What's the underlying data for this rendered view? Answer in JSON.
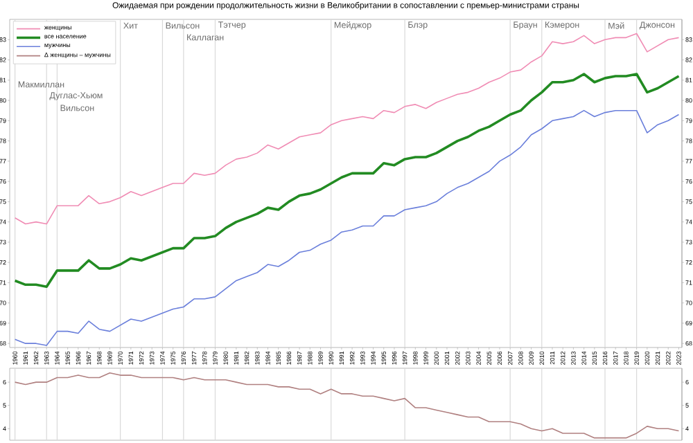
{
  "chart_data": [
    {
      "type": "line",
      "title": "Ожидаемая при рождении продолжительность жизни в Великобритании в сопоставлении с премьер-министрами страны",
      "x": [
        1960,
        1961,
        1962,
        1963,
        1964,
        1965,
        1966,
        1967,
        1968,
        1969,
        1970,
        1971,
        1972,
        1973,
        1974,
        1975,
        1976,
        1977,
        1978,
        1979,
        1980,
        1981,
        1982,
        1983,
        1984,
        1985,
        1986,
        1987,
        1988,
        1989,
        1990,
        1991,
        1992,
        1993,
        1994,
        1995,
        1996,
        1997,
        1998,
        1999,
        2000,
        2001,
        2002,
        2003,
        2004,
        2005,
        2006,
        2007,
        2008,
        2009,
        2010,
        2011,
        2012,
        2013,
        2014,
        2015,
        2016,
        2017,
        2018,
        2019,
        2020,
        2021,
        2022,
        2023
      ],
      "series": [
        {
          "name": "женщины",
          "color": "#f08cb4",
          "values": [
            74.2,
            73.9,
            74.0,
            73.9,
            74.8,
            74.8,
            74.8,
            75.3,
            74.9,
            75.0,
            75.2,
            75.5,
            75.3,
            75.5,
            75.7,
            75.9,
            75.9,
            76.4,
            76.3,
            76.4,
            76.8,
            77.1,
            77.2,
            77.4,
            77.8,
            77.6,
            77.9,
            78.2,
            78.3,
            78.4,
            78.8,
            79.0,
            79.1,
            79.2,
            79.1,
            79.5,
            79.4,
            79.7,
            79.8,
            79.6,
            79.9,
            80.1,
            80.3,
            80.4,
            80.6,
            80.9,
            81.1,
            81.4,
            81.5,
            81.9,
            82.2,
            82.9,
            82.8,
            82.9,
            83.2,
            82.8,
            83.0,
            83.1,
            83.1,
            83.3,
            82.4,
            82.7,
            83.0,
            83.1
          ]
        },
        {
          "name": "все население",
          "color": "#228b22",
          "values": [
            71.1,
            70.9,
            70.9,
            70.8,
            71.6,
            71.6,
            71.6,
            72.1,
            71.7,
            71.7,
            71.9,
            72.2,
            72.1,
            72.3,
            72.5,
            72.7,
            72.7,
            73.2,
            73.2,
            73.3,
            73.7,
            74.0,
            74.2,
            74.4,
            74.7,
            74.6,
            75.0,
            75.3,
            75.4,
            75.6,
            75.9,
            76.2,
            76.4,
            76.4,
            76.4,
            76.9,
            76.8,
            77.1,
            77.2,
            77.2,
            77.4,
            77.7,
            78.0,
            78.2,
            78.5,
            78.7,
            79.0,
            79.3,
            79.5,
            80.0,
            80.4,
            80.9,
            80.9,
            81.0,
            81.3,
            80.9,
            81.1,
            81.2,
            81.2,
            81.3,
            80.4,
            80.6,
            80.9,
            81.2
          ]
        },
        {
          "name": "мужчины",
          "color": "#6a7fdb",
          "values": [
            68.2,
            68.0,
            68.0,
            67.9,
            68.6,
            68.6,
            68.5,
            69.1,
            68.7,
            68.6,
            68.9,
            69.2,
            69.1,
            69.3,
            69.5,
            69.7,
            69.8,
            70.2,
            70.2,
            70.3,
            70.7,
            71.1,
            71.3,
            71.5,
            71.9,
            71.8,
            72.1,
            72.5,
            72.6,
            72.9,
            73.1,
            73.5,
            73.6,
            73.8,
            73.8,
            74.3,
            74.3,
            74.6,
            74.7,
            74.8,
            75.0,
            75.4,
            75.7,
            75.9,
            76.2,
            76.5,
            77.0,
            77.3,
            77.7,
            78.3,
            78.6,
            79.0,
            79.1,
            79.2,
            79.5,
            79.2,
            79.4,
            79.5,
            79.5,
            79.5,
            78.4,
            78.8,
            79.0,
            79.3
          ]
        }
      ],
      "xlim": [
        1959.5,
        2023.3
      ],
      "xticks": [
        1960,
        1961,
        1962,
        1963,
        1964,
        1965,
        1966,
        1967,
        1968,
        1969,
        1970,
        1971,
        1972,
        1973,
        1974,
        1975,
        1976,
        1977,
        1978,
        1979,
        1980,
        1981,
        1982,
        1983,
        1984,
        1985,
        1986,
        1987,
        1988,
        1989,
        1990,
        1991,
        1992,
        1993,
        1994,
        1995,
        1996,
        1997,
        1998,
        1999,
        2000,
        2001,
        2002,
        2003,
        2004,
        2005,
        2006,
        2007,
        2008,
        2009,
        2010,
        2011,
        2012,
        2013,
        2014,
        2015,
        2016,
        2017,
        2018,
        2019,
        2020,
        2021,
        2022,
        2023
      ],
      "ylim": [
        67.8,
        84.0
      ],
      "yticks": [
        68,
        69,
        70,
        71,
        72,
        73,
        74,
        75,
        76,
        77,
        78,
        79,
        80,
        81,
        82,
        83
      ],
      "y2lim": [
        67.8,
        84.0
      ],
      "y2ticks": [
        68,
        69,
        70,
        71,
        72,
        73,
        74,
        75,
        76,
        77,
        78,
        79,
        80,
        81,
        82,
        83
      ],
      "legend": "top left",
      "ref_lines": [
        {
          "axis": "x",
          "value": 1960,
          "label": "Макмиллан"
        },
        {
          "axis": "x",
          "value": 1963,
          "label": "Дуглас-Хьюм"
        },
        {
          "axis": "x",
          "value": 1964,
          "label": "Вильсон"
        },
        {
          "axis": "x",
          "value": 1970,
          "label": "Хит"
        },
        {
          "axis": "x",
          "value": 1974,
          "label": "Вильсон"
        },
        {
          "axis": "x",
          "value": 1976,
          "label": "Каллаган"
        },
        {
          "axis": "x",
          "value": 1979,
          "label": "Тэтчер"
        },
        {
          "axis": "x",
          "value": 1990,
          "label": "Мейджор"
        },
        {
          "axis": "x",
          "value": 1997,
          "label": "Блэр"
        },
        {
          "axis": "x",
          "value": 2007,
          "label": "Браун"
        },
        {
          "axis": "x",
          "value": 2010,
          "label": "Кэмерон"
        },
        {
          "axis": "x",
          "value": 2016,
          "label": "Мэй"
        },
        {
          "axis": "x",
          "value": 2019,
          "label": "Джонсон"
        }
      ]
    },
    {
      "type": "line",
      "x": [
        1960,
        1961,
        1962,
        1963,
        1964,
        1965,
        1966,
        1967,
        1968,
        1969,
        1970,
        1971,
        1972,
        1973,
        1974,
        1975,
        1976,
        1977,
        1978,
        1979,
        1980,
        1981,
        1982,
        1983,
        1984,
        1985,
        1986,
        1987,
        1988,
        1989,
        1990,
        1991,
        1992,
        1993,
        1994,
        1995,
        1996,
        1997,
        1998,
        1999,
        2000,
        2001,
        2002,
        2003,
        2004,
        2005,
        2006,
        2007,
        2008,
        2009,
        2010,
        2011,
        2012,
        2013,
        2014,
        2015,
        2016,
        2017,
        2018,
        2019,
        2020,
        2021,
        2022,
        2023
      ],
      "series": [
        {
          "name": "Δ женщины – мужчины",
          "color": "#b08080",
          "values": [
            6.0,
            5.9,
            6.0,
            6.0,
            6.2,
            6.2,
            6.3,
            6.2,
            6.2,
            6.4,
            6.3,
            6.3,
            6.2,
            6.2,
            6.2,
            6.2,
            6.1,
            6.2,
            6.1,
            6.1,
            6.1,
            6.0,
            5.9,
            5.9,
            5.9,
            5.8,
            5.8,
            5.7,
            5.7,
            5.5,
            5.7,
            5.5,
            5.5,
            5.4,
            5.4,
            5.3,
            5.2,
            5.3,
            4.9,
            4.9,
            4.8,
            4.7,
            4.6,
            4.5,
            4.5,
            4.3,
            4.3,
            4.3,
            4.2,
            4.0,
            3.9,
            4.0,
            3.8,
            3.8,
            3.8,
            3.6,
            3.6,
            3.6,
            3.6,
            3.8,
            4.1,
            4.0,
            4.0,
            3.9
          ]
        }
      ],
      "xlim": [
        1959.5,
        2023.3
      ],
      "ylim": [
        3.5,
        6.6
      ],
      "yticks": [
        4,
        5,
        6
      ],
      "y2lim": [
        3.5,
        6.6
      ],
      "y2ticks": [
        4,
        5,
        6
      ],
      "tick_labels": "y",
      "ref_lines": [
        {
          "axis": "x",
          "value": 1960
        },
        {
          "axis": "x",
          "value": 1963
        },
        {
          "axis": "x",
          "value": 1964
        },
        {
          "axis": "x",
          "value": 1970
        },
        {
          "axis": "x",
          "value": 1974
        },
        {
          "axis": "x",
          "value": 1976
        },
        {
          "axis": "x",
          "value": 1979
        },
        {
          "axis": "x",
          "value": 1990
        },
        {
          "axis": "x",
          "value": 1997
        },
        {
          "axis": "x",
          "value": 2007
        },
        {
          "axis": "x",
          "value": 2010
        },
        {
          "axis": "x",
          "value": 2016
        },
        {
          "axis": "x",
          "value": 2019
        }
      ]
    }
  ]
}
